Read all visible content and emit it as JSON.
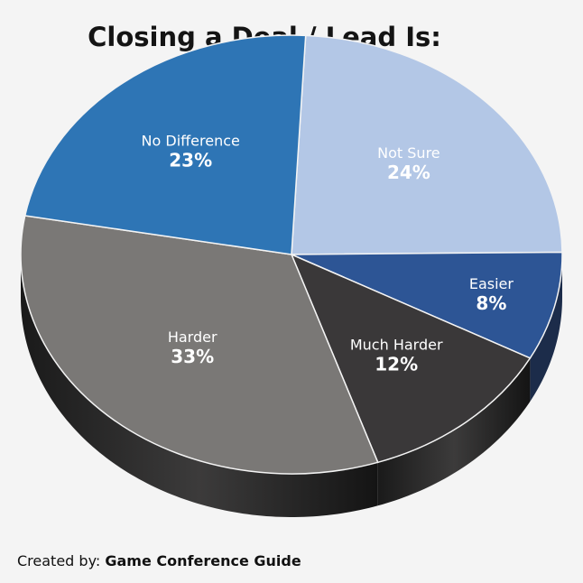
{
  "chart_data": {
    "type": "pie",
    "title": "Closing a Deal / Lead Is:",
    "categories": [
      "Not Sure",
      "Easier",
      "Much Harder",
      "Harder",
      "No Difference"
    ],
    "values": [
      24,
      8,
      12,
      33,
      23
    ],
    "labels": [
      "24%",
      "8%",
      "12%",
      "33%",
      "23%"
    ],
    "colors": [
      "#b3c7e6",
      "#2d5595",
      "#3a3839",
      "#7a7876",
      "#2e75b5"
    ],
    "legend": "none"
  },
  "credit": {
    "prefix": "Created by:",
    "source": "Game Conference Guide"
  }
}
